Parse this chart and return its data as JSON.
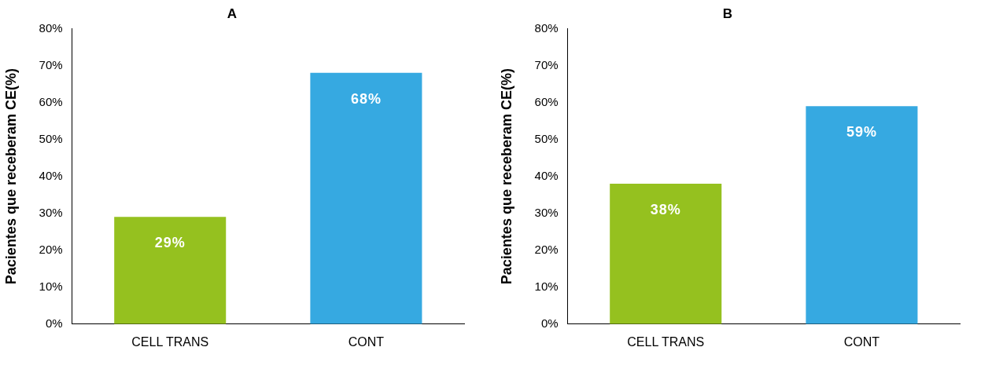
{
  "chart_data": [
    {
      "type": "bar",
      "title": "A",
      "ylabel": "Pacientes que receberam CE(%)",
      "categories": [
        "CELL TRANS",
        "CONT"
      ],
      "values": [
        29,
        68
      ],
      "colors": [
        "#95c11f",
        "#36a9e1"
      ],
      "value_labels": [
        "29%",
        "68%"
      ],
      "ylim": [
        0,
        80
      ],
      "yticks": [
        {
          "value": 0,
          "label": "0%"
        },
        {
          "value": 10,
          "label": "10%"
        },
        {
          "value": 20,
          "label": "20%"
        },
        {
          "value": 30,
          "label": "30%"
        },
        {
          "value": 40,
          "label": "40%"
        },
        {
          "value": 50,
          "label": "50%"
        },
        {
          "value": 60,
          "label": "60%"
        },
        {
          "value": 70,
          "label": "70%"
        },
        {
          "value": 80,
          "label": "80%"
        }
      ],
      "grid": false,
      "legend": false
    },
    {
      "type": "bar",
      "title": "B",
      "ylabel": "Pacientes que receberam CE(%)",
      "categories": [
        "CELL TRANS",
        "CONT"
      ],
      "values": [
        38,
        59
      ],
      "colors": [
        "#95c11f",
        "#36a9e1"
      ],
      "value_labels": [
        "38%",
        "59%"
      ],
      "ylim": [
        0,
        80
      ],
      "yticks": [
        {
          "value": 0,
          "label": "0%"
        },
        {
          "value": 10,
          "label": "10%"
        },
        {
          "value": 20,
          "label": "20%"
        },
        {
          "value": 30,
          "label": "30%"
        },
        {
          "value": 40,
          "label": "40%"
        },
        {
          "value": 50,
          "label": "50%"
        },
        {
          "value": 60,
          "label": "60%"
        },
        {
          "value": 70,
          "label": "70%"
        },
        {
          "value": 80,
          "label": "80%"
        }
      ],
      "grid": false,
      "legend": false
    }
  ]
}
